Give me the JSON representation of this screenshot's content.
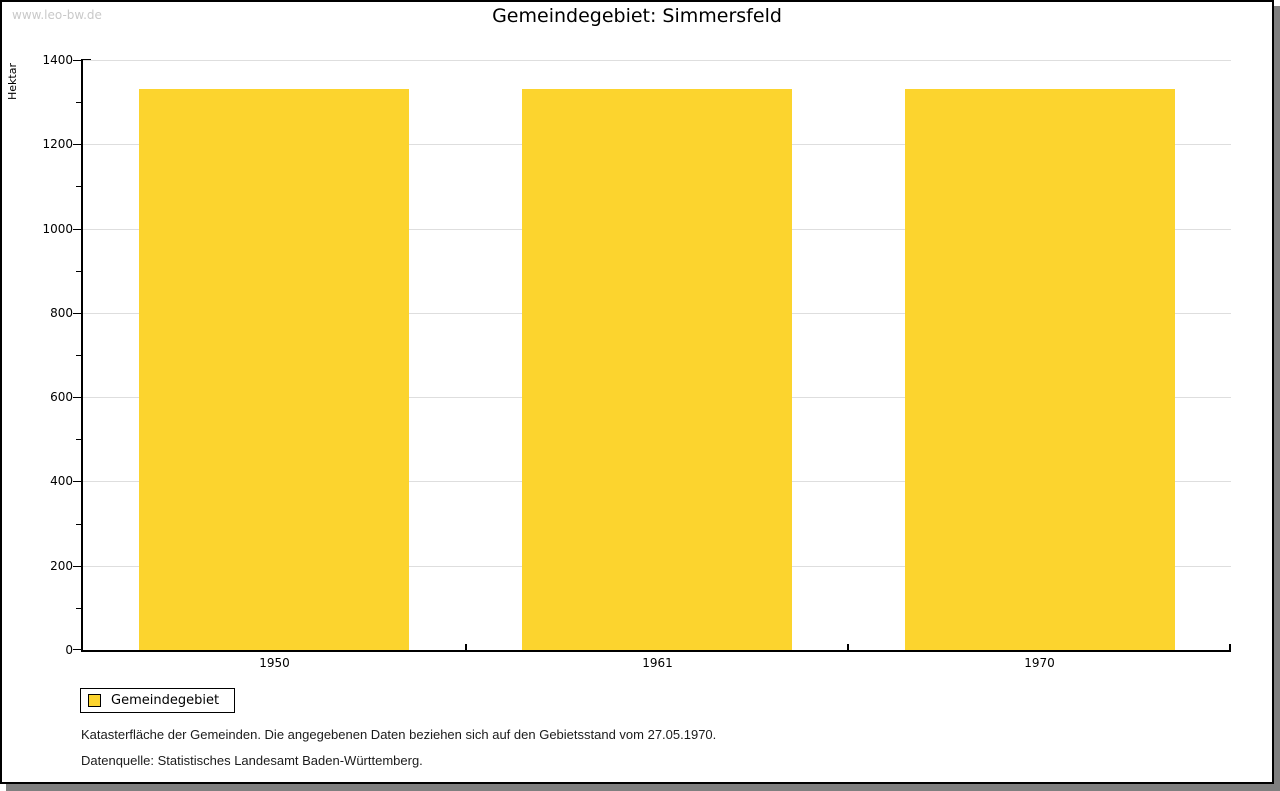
{
  "page": {
    "watermark": "www.leo-bw.de",
    "title": "Gemeindegebiet: Simmersfeld"
  },
  "chart_data": {
    "type": "bar",
    "title": "Gemeindegebiet: Simmersfeld",
    "categories": [
      "1950",
      "1961",
      "1970"
    ],
    "series": [
      {
        "name": "Gemeindegebiet",
        "values": [
          1331,
          1331,
          1331
        ]
      }
    ],
    "xlabel": "",
    "ylabel": "Hektar",
    "ylim": [
      0,
      1400
    ],
    "y_major_step": 200,
    "y_minor_step": 100,
    "grid": true,
    "legend_position": "bottom-left",
    "bar_color": "#FCD42E"
  },
  "legend": {
    "items": [
      {
        "label": "Gemeindegebiet",
        "color": "#FCD42E"
      }
    ]
  },
  "footnotes": {
    "line1": "Katasterfläche der Gemeinden. Die angegebenen Daten beziehen sich auf den Gebietsstand vom 27.05.1970.",
    "line2": "Datenquelle: Statistisches Landesamt Baden-Württemberg."
  },
  "colors": {
    "bar": "#FCD42E",
    "grid": "#DEDEDE",
    "axis": "#000000",
    "watermark": "#C9C9C9",
    "shadow": "#7F7F7F"
  }
}
